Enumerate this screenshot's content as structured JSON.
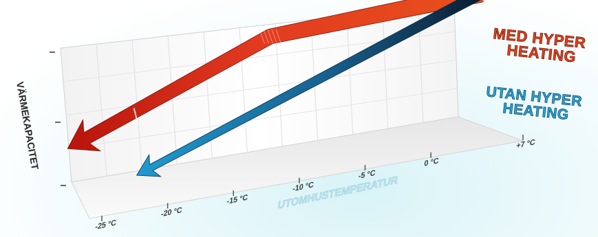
{
  "chart_data": {
    "type": "area",
    "title": "",
    "xlabel": "UTOMHUSTEMPERATUR",
    "ylabel": "VÄRMEKAPACITET",
    "x_tick_labels": [
      "-25 °C",
      "-20 °C",
      "-15 °C",
      "-10 °C",
      "-5 °C",
      "0 °C",
      "+7 °C"
    ],
    "x_tick_values": [
      -25,
      -20,
      -15,
      -10,
      -5,
      0,
      7
    ],
    "xlim": [
      -25,
      7
    ],
    "ylim": [
      0,
      100
    ],
    "grid": true,
    "legend_placement": "right",
    "series": [
      {
        "name": "MED HYPER HEATING",
        "color": "#d8401c",
        "x": [
          7,
          -10,
          -25
        ],
        "y": [
          100,
          92,
          38
        ]
      },
      {
        "name": "UTAN HYPER HEATING",
        "color": "#1c8fc2",
        "x": [
          7,
          -20
        ],
        "y": [
          100,
          8
        ]
      }
    ]
  }
}
